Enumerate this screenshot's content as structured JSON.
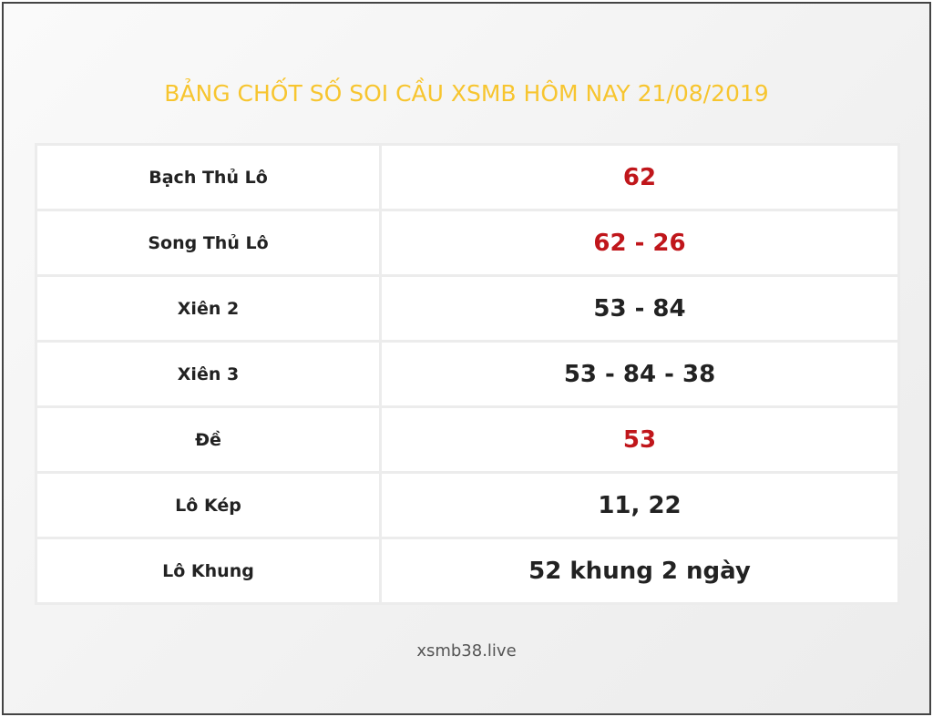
{
  "title": "BẢNG CHỐT SỐ SOI CẦU XSMB HÔM NAY 21/08/2019",
  "table": {
    "rows": [
      [
        "Bạch Thủ Lô",
        "62"
      ],
      [
        "Song Thủ Lô",
        "62 - 26"
      ],
      [
        "Xiên 2",
        "53 - 84"
      ],
      [
        "Xiên 3",
        "53 - 84 - 38"
      ],
      [
        "Đề",
        "53"
      ],
      [
        "Lô Kép",
        "11, 22"
      ],
      [
        "Lô Khung",
        "52 khung 2 ngày"
      ]
    ]
  },
  "footer": "xsmb38.live"
}
